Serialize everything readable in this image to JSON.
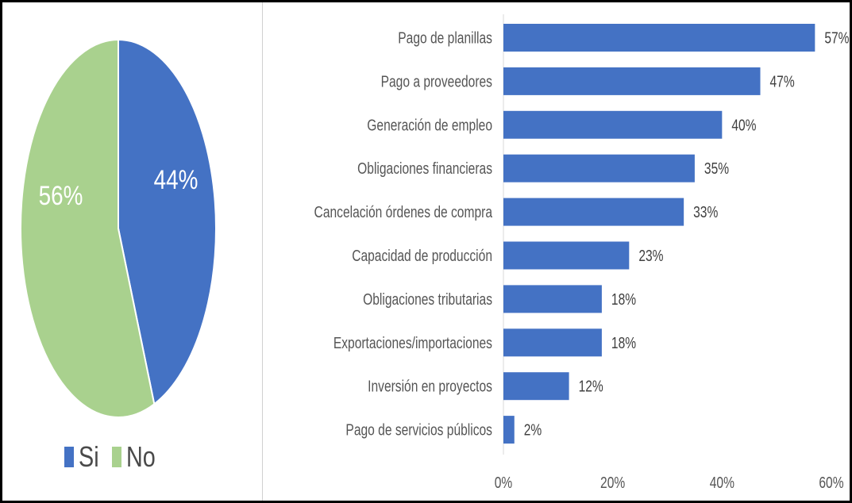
{
  "chart_data": [
    {
      "type": "pie",
      "slices": [
        {
          "name": "Si",
          "value": 44,
          "label": "44%",
          "color": "#4472C4"
        },
        {
          "name": "No",
          "value": 56,
          "label": "56%",
          "color": "#A9D18E"
        }
      ],
      "legend": {
        "placement": "bottom",
        "items": [
          "Si",
          "No"
        ]
      }
    },
    {
      "type": "bar",
      "orientation": "horizontal",
      "color": "#4472C4",
      "categories": [
        "Pago de planillas",
        "Pago a proveedores",
        "Generación de empleo",
        "Obligaciones financieras",
        "Cancelación órdenes de compra",
        "Capacidad de producción",
        "Obligaciones tributarias",
        "Exportaciones/importaciones",
        "Inversión en proyectos",
        "Pago de servicios públicos"
      ],
      "values": [
        57,
        47,
        40,
        35,
        33,
        23,
        18,
        18,
        12,
        2
      ],
      "value_labels": [
        "57%",
        "47%",
        "40%",
        "35%",
        "33%",
        "23%",
        "18%",
        "18%",
        "12%",
        "2%"
      ],
      "xlim": [
        0,
        60
      ],
      "x_ticks": [
        0,
        20,
        40,
        60
      ],
      "x_tick_labels": [
        "0%",
        "20%",
        "40%",
        "60%"
      ],
      "grid": false
    }
  ]
}
